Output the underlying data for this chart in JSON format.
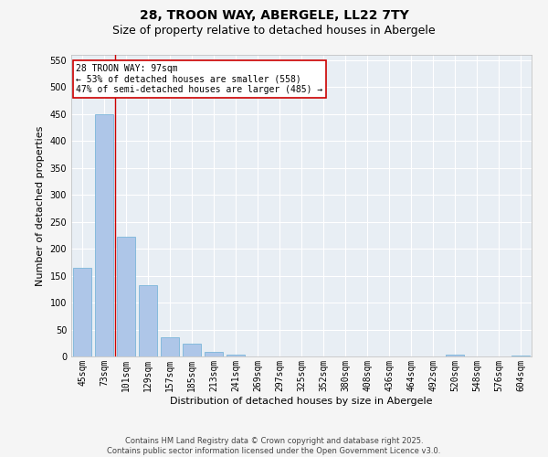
{
  "title": "28, TROON WAY, ABERGELE, LL22 7TY",
  "subtitle": "Size of property relative to detached houses in Abergele",
  "xlabel": "Distribution of detached houses by size in Abergele",
  "ylabel": "Number of detached properties",
  "categories": [
    "45sqm",
    "73sqm",
    "101sqm",
    "129sqm",
    "157sqm",
    "185sqm",
    "213sqm",
    "241sqm",
    "269sqm",
    "297sqm",
    "325sqm",
    "352sqm",
    "380sqm",
    "408sqm",
    "436sqm",
    "464sqm",
    "492sqm",
    "520sqm",
    "548sqm",
    "576sqm",
    "604sqm"
  ],
  "values": [
    165,
    450,
    223,
    133,
    36,
    23,
    9,
    4,
    0,
    0,
    0,
    0,
    0,
    0,
    0,
    0,
    0,
    3,
    0,
    0,
    2
  ],
  "bar_color": "#aec6e8",
  "bar_edgecolor": "#6aaed6",
  "vline_x_index": 2,
  "vline_color": "#cc0000",
  "annotation_line1": "28 TROON WAY: 97sqm",
  "annotation_line2": "← 53% of detached houses are smaller (558)",
  "annotation_line3": "47% of semi-detached houses are larger (485) →",
  "annotation_box_edgecolor": "#cc0000",
  "annotation_box_facecolor": "#ffffff",
  "ylim": [
    0,
    560
  ],
  "yticks": [
    0,
    50,
    100,
    150,
    200,
    250,
    300,
    350,
    400,
    450,
    500,
    550
  ],
  "bg_color": "#e8eef4",
  "grid_color": "#ffffff",
  "footer_line1": "Contains HM Land Registry data © Crown copyright and database right 2025.",
  "footer_line2": "Contains public sector information licensed under the Open Government Licence v3.0.",
  "title_fontsize": 10,
  "subtitle_fontsize": 9,
  "label_fontsize": 8,
  "tick_fontsize": 7,
  "annotation_fontsize": 7,
  "footer_fontsize": 6
}
